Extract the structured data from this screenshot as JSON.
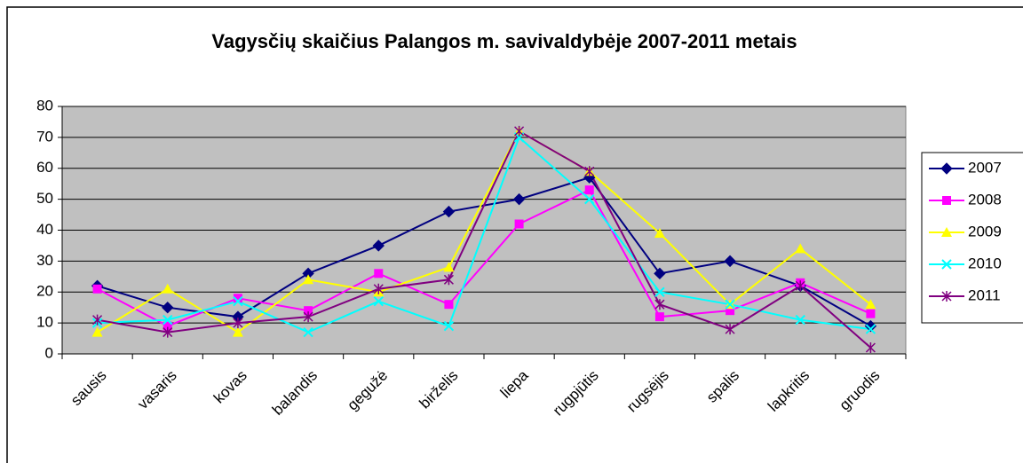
{
  "chart_data": {
    "type": "line",
    "title": "Vagysčių skaičius Palangos m. savivaldybėje 2007-2011 metais",
    "categories": [
      "sausis",
      "vasaris",
      "kovas",
      "balandis",
      "gegužė",
      "birželis",
      "liepa",
      "rugpjūtis",
      "rugsėjis",
      "spalis",
      "lapkritis",
      "gruodis"
    ],
    "series": [
      {
        "name": "2007",
        "color": "#000080",
        "marker": "diamond",
        "values": [
          22,
          15,
          12,
          26,
          35,
          46,
          50,
          57,
          26,
          30,
          22,
          9
        ]
      },
      {
        "name": "2008",
        "color": "#ff00ff",
        "marker": "square",
        "values": [
          21,
          9,
          18,
          14,
          26,
          16,
          42,
          53,
          12,
          14,
          23,
          13
        ]
      },
      {
        "name": "2009",
        "color": "#ffff00",
        "marker": "triangle",
        "values": [
          7,
          21,
          7,
          24,
          20,
          28,
          72,
          59,
          39,
          16,
          34,
          16
        ]
      },
      {
        "name": "2010",
        "color": "#00ffff",
        "marker": "x",
        "values": [
          10,
          11,
          17,
          7,
          17,
          9,
          70,
          50,
          20,
          16,
          11,
          8
        ]
      },
      {
        "name": "2011",
        "color": "#800080",
        "marker": "star",
        "values": [
          11,
          7,
          10,
          12,
          21,
          24,
          72,
          59,
          16,
          8,
          22,
          2
        ]
      }
    ],
    "ylim": [
      0,
      80
    ],
    "yticks": [
      0,
      10,
      20,
      30,
      40,
      50,
      60,
      70,
      80
    ],
    "grid": true,
    "legend": "right"
  }
}
